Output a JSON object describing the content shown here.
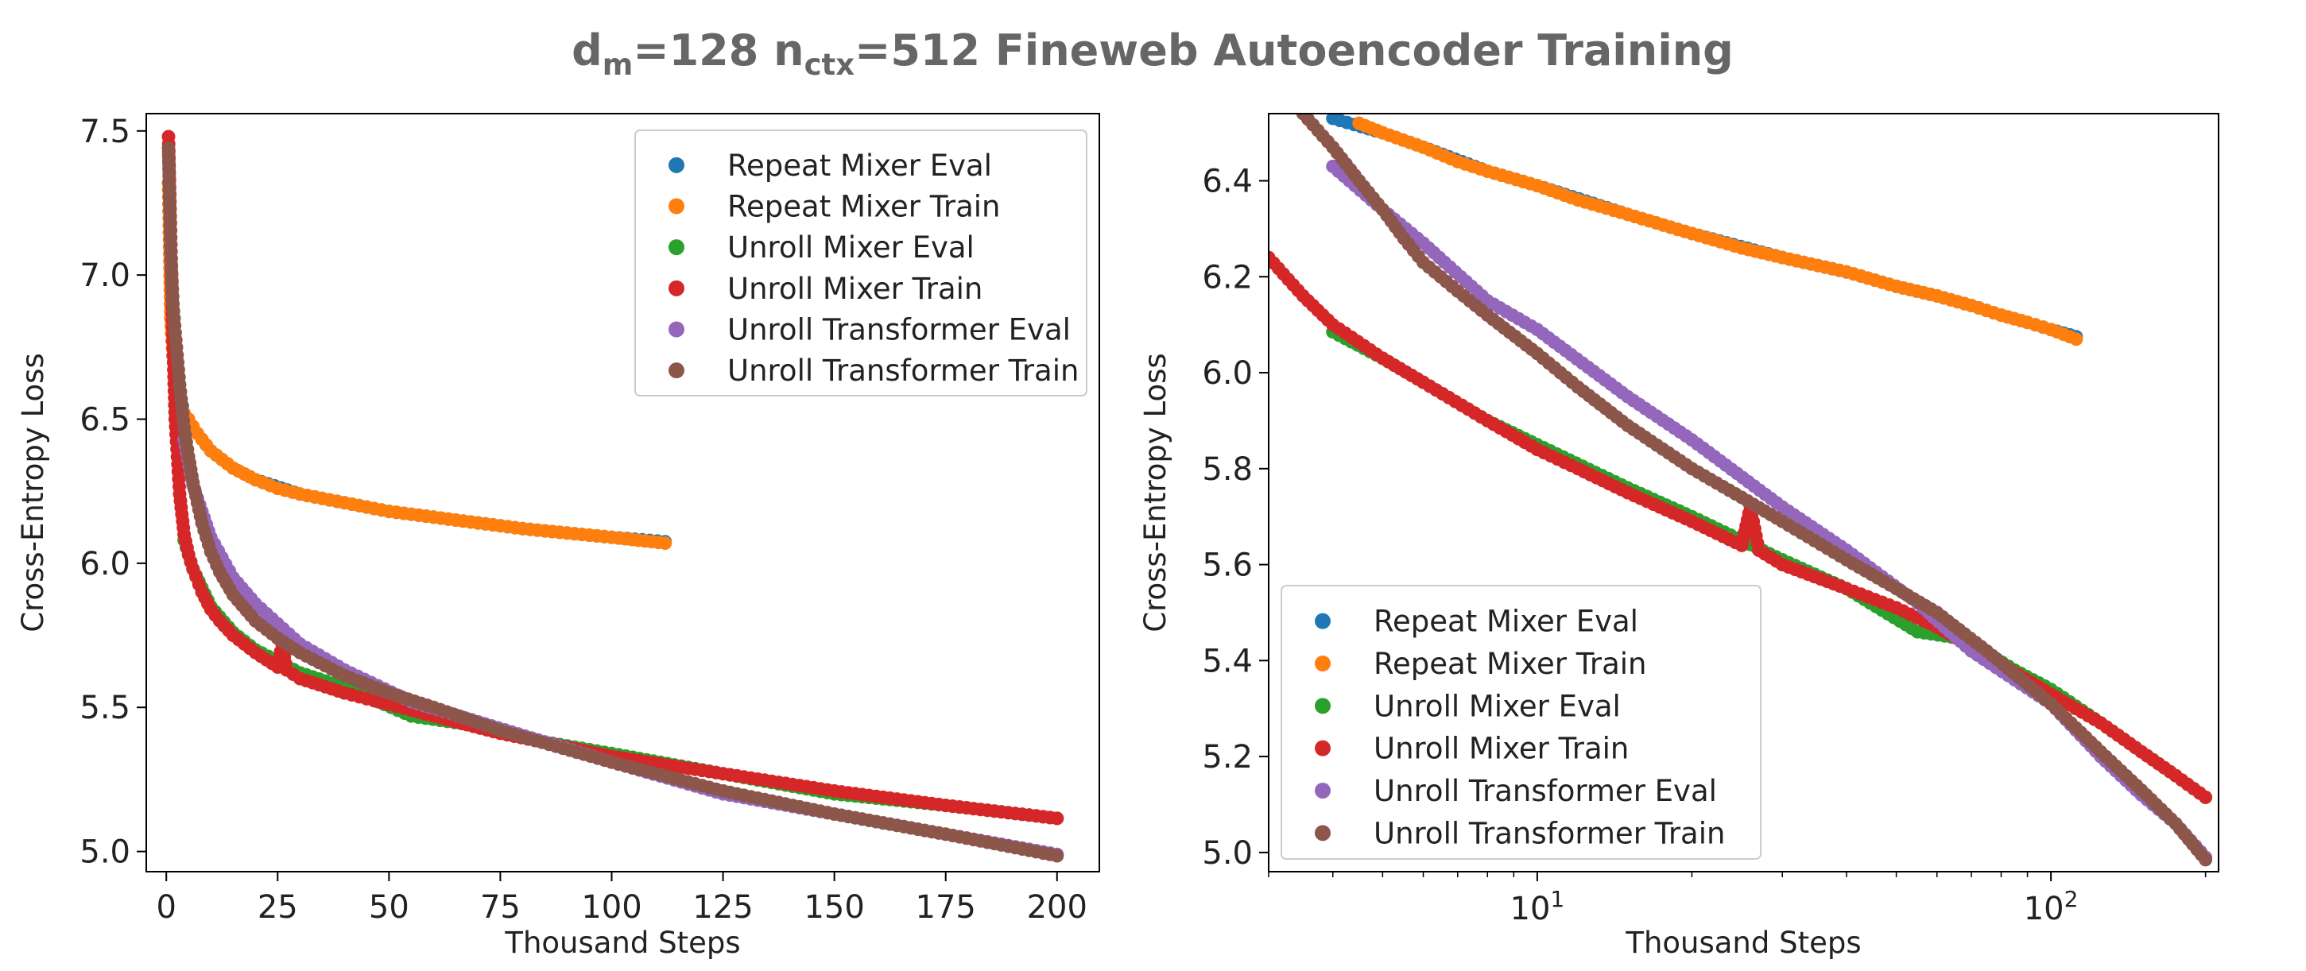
{
  "figure_title": {
    "main": "d",
    "sub1": "m",
    "mid": "=128 n",
    "sub2": "ctx",
    "rest": "=512 Fineweb Autoencoder Training"
  },
  "colors": {
    "repeat_mixer_eval": "#1f77b4",
    "repeat_mixer_train": "#ff7f0e",
    "unroll_mixer_eval": "#2ca02c",
    "unroll_mixer_train": "#d62728",
    "unroll_transformer_eval": "#9467bd",
    "unroll_transformer_train": "#8c564b"
  },
  "chart_data": [
    {
      "type": "line",
      "xlabel": "Thousand Steps",
      "ylabel": "Cross-Entropy Loss",
      "xscale": "linear",
      "xlim": [
        -4.5,
        209.5
      ],
      "ylim": [
        4.93,
        7.56
      ],
      "xticks": [
        "0",
        "25",
        "50",
        "75",
        "100",
        "125",
        "150",
        "175",
        "200"
      ],
      "yticks": [
        "5.0",
        "5.5",
        "6.0",
        "6.5",
        "7.0",
        "7.5"
      ],
      "grid": false,
      "legend": "top-right",
      "series": [
        {
          "name": "Repeat Mixer Eval",
          "color_key": "repeat_mixer_eval",
          "x": [
            1,
            2,
            4,
            6,
            10,
            15,
            20,
            30,
            40,
            50,
            60,
            70,
            80,
            90,
            100,
            112
          ],
          "y": [
            6.85,
            6.65,
            6.52,
            6.47,
            6.39,
            6.33,
            6.29,
            6.24,
            6.21,
            6.18,
            6.16,
            6.14,
            6.12,
            6.105,
            6.09,
            6.075
          ]
        },
        {
          "name": "Repeat Mixer Train",
          "color_key": "repeat_mixer_train",
          "x": [
            0.5,
            1,
            1.5,
            2,
            3,
            4,
            5,
            7,
            10,
            15,
            20,
            25,
            30,
            40,
            50,
            60,
            70,
            80,
            90,
            100,
            112
          ],
          "y": [
            7.32,
            6.85,
            6.72,
            6.65,
            6.57,
            6.52,
            6.5,
            6.45,
            6.39,
            6.33,
            6.29,
            6.26,
            6.24,
            6.21,
            6.18,
            6.16,
            6.14,
            6.12,
            6.105,
            6.09,
            6.07
          ]
        },
        {
          "name": "Unroll Mixer Eval",
          "color_key": "unroll_mixer_eval",
          "x": [
            4,
            6,
            10,
            15,
            20,
            30,
            40,
            55,
            68,
            85,
            100,
            125,
            150,
            175,
            200
          ],
          "y": [
            6.08,
            5.98,
            5.85,
            5.76,
            5.7,
            5.62,
            5.57,
            5.47,
            5.44,
            5.38,
            5.34,
            5.27,
            5.2,
            5.16,
            5.115
          ]
        },
        {
          "name": "Unroll Mixer Train",
          "color_key": "unroll_mixer_train",
          "x": [
            0.5,
            1,
            1.5,
            2,
            3,
            4,
            5,
            6,
            8,
            10,
            12,
            15,
            20,
            25,
            26,
            27,
            30,
            40,
            50,
            60,
            75,
            100,
            125,
            150,
            175,
            200
          ],
          "y": [
            7.48,
            7.13,
            6.77,
            6.5,
            6.24,
            6.1,
            6.03,
            5.98,
            5.9,
            5.84,
            5.8,
            5.75,
            5.69,
            5.64,
            5.72,
            5.63,
            5.6,
            5.55,
            5.51,
            5.47,
            5.41,
            5.33,
            5.27,
            5.21,
            5.16,
            5.115
          ]
        },
        {
          "name": "Unroll Transformer Eval",
          "color_key": "unroll_transformer_eval",
          "x": [
            4,
            6,
            10,
            15,
            20,
            30,
            40,
            55,
            70,
            85,
            100,
            125,
            150,
            175,
            200
          ],
          "y": [
            6.43,
            6.27,
            6.09,
            5.95,
            5.86,
            5.72,
            5.63,
            5.52,
            5.45,
            5.38,
            5.31,
            5.2,
            5.13,
            5.06,
            4.99
          ]
        },
        {
          "name": "Unroll Transformer Train",
          "color_key": "unroll_transformer_train",
          "x": [
            0.5,
            1,
            1.5,
            2,
            3,
            4,
            5,
            6,
            8,
            10,
            12,
            15,
            20,
            25,
            30,
            40,
            50,
            60,
            75,
            100,
            125,
            150,
            175,
            200
          ],
          "y": [
            7.44,
            7.08,
            6.9,
            6.8,
            6.62,
            6.47,
            6.37,
            6.28,
            6.14,
            6.04,
            5.97,
            5.89,
            5.8,
            5.74,
            5.69,
            5.61,
            5.55,
            5.5,
            5.42,
            5.31,
            5.21,
            5.13,
            5.06,
            4.985
          ]
        }
      ]
    },
    {
      "type": "line",
      "xlabel": "Thousand Steps",
      "ylabel": "Cross-Entropy Loss",
      "xscale": "log",
      "xlim": [
        3,
        212
      ],
      "ylim": [
        4.96,
        6.54
      ],
      "xticks": [
        {
          "value": 10,
          "base": "10",
          "exp": "1"
        },
        {
          "value": 100,
          "base": "10",
          "exp": "2"
        }
      ],
      "yticks": [
        "5.0",
        "5.2",
        "5.4",
        "5.6",
        "5.8",
        "6.0",
        "6.2",
        "6.4"
      ],
      "grid": false,
      "legend": "bottom-left",
      "series": [
        {
          "name": "Repeat Mixer Eval",
          "color_key": "repeat_mixer_eval",
          "x": [
            4,
            5,
            6,
            8,
            10,
            15,
            20,
            30,
            40,
            50,
            60,
            70,
            80,
            90,
            100,
            112
          ],
          "y": [
            6.53,
            6.5,
            6.47,
            6.42,
            6.39,
            6.33,
            6.29,
            6.24,
            6.21,
            6.18,
            6.16,
            6.14,
            6.12,
            6.105,
            6.09,
            6.075
          ]
        },
        {
          "name": "Repeat Mixer Train",
          "color_key": "repeat_mixer_train",
          "x": [
            4.5,
            5,
            6,
            7,
            8,
            10,
            12,
            15,
            20,
            25,
            30,
            40,
            50,
            60,
            70,
            80,
            90,
            100,
            112
          ],
          "y": [
            6.52,
            6.5,
            6.47,
            6.44,
            6.42,
            6.39,
            6.36,
            6.33,
            6.29,
            6.26,
            6.24,
            6.21,
            6.18,
            6.16,
            6.14,
            6.12,
            6.105,
            6.09,
            6.07
          ]
        },
        {
          "name": "Unroll Mixer Eval",
          "color_key": "unroll_mixer_eval",
          "x": [
            4,
            5,
            6,
            8,
            10,
            15,
            20,
            30,
            40,
            55,
            68,
            85,
            100,
            125,
            150,
            175,
            200
          ],
          "y": [
            6.085,
            6.03,
            5.98,
            5.9,
            5.85,
            5.76,
            5.7,
            5.61,
            5.55,
            5.46,
            5.445,
            5.38,
            5.34,
            5.27,
            5.21,
            5.16,
            5.115
          ]
        },
        {
          "name": "Unroll Mixer Train",
          "color_key": "unroll_mixer_train",
          "x": [
            3,
            3.5,
            4,
            5,
            6,
            8,
            10,
            12,
            15,
            20,
            25,
            26,
            27,
            30,
            40,
            50,
            60,
            75,
            100,
            125,
            150,
            175,
            200
          ],
          "y": [
            6.24,
            6.16,
            6.1,
            6.03,
            5.98,
            5.9,
            5.84,
            5.8,
            5.75,
            5.69,
            5.64,
            5.72,
            5.63,
            5.6,
            5.55,
            5.51,
            5.47,
            5.41,
            5.33,
            5.27,
            5.21,
            5.16,
            5.115
          ]
        },
        {
          "name": "Unroll Transformer Eval",
          "color_key": "unroll_transformer_eval",
          "x": [
            4,
            5,
            6,
            8,
            10,
            15,
            20,
            30,
            40,
            55,
            70,
            85,
            100,
            125,
            150,
            175,
            200
          ],
          "y": [
            6.43,
            6.34,
            6.27,
            6.15,
            6.09,
            5.95,
            5.86,
            5.72,
            5.63,
            5.52,
            5.42,
            5.36,
            5.31,
            5.2,
            5.12,
            5.06,
            4.99
          ]
        },
        {
          "name": "Unroll Transformer Train",
          "color_key": "unroll_transformer_train",
          "x": [
            3.5,
            4,
            4.5,
            5,
            5.5,
            6,
            7,
            8,
            10,
            12,
            15,
            20,
            25,
            30,
            40,
            50,
            60,
            75,
            100,
            125,
            150,
            175,
            200
          ],
          "y": [
            6.54,
            6.47,
            6.4,
            6.34,
            6.28,
            6.23,
            6.17,
            6.12,
            6.04,
            5.97,
            5.89,
            5.8,
            5.74,
            5.69,
            5.61,
            5.55,
            5.5,
            5.42,
            5.31,
            5.21,
            5.13,
            5.06,
            4.985
          ]
        }
      ]
    }
  ]
}
